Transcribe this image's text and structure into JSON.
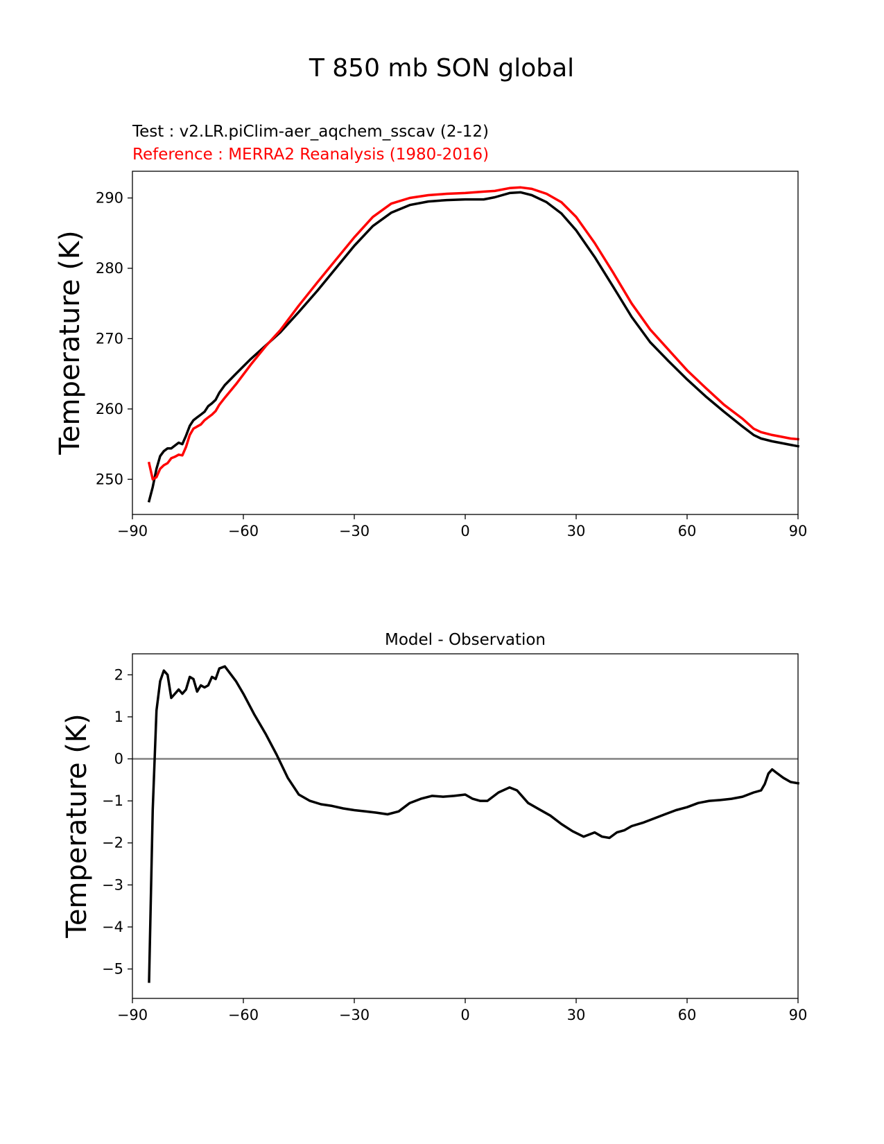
{
  "figure": {
    "suptitle": "T 850 mb SON global"
  },
  "chart_data": [
    {
      "type": "line",
      "test_label": "Test : v2.LR.piClim-aer_aqchem_sscav (2-12)",
      "reference_label": "Reference : MERRA2 Reanalysis (1980-2016)",
      "title": "",
      "xlabel": "",
      "ylabel": "Temperature (K)",
      "xlim": [
        -90,
        90
      ],
      "ylim": [
        245,
        293.8
      ],
      "xticks": [
        -90,
        -60,
        -30,
        0,
        30,
        60,
        90
      ],
      "xtick_labels": [
        "−90",
        "−60",
        "−30",
        "0",
        "30",
        "60",
        "90"
      ],
      "yticks": [
        250,
        260,
        270,
        280,
        290
      ],
      "ytick_labels": [
        "250",
        "260",
        "270",
        "280",
        "290"
      ],
      "series": [
        {
          "name": "Test",
          "color": "#000000",
          "x": [
            -85.5,
            -84.5,
            -83.5,
            -82.5,
            -81.5,
            -80.5,
            -79.5,
            -78.5,
            -77.5,
            -76.5,
            -75.5,
            -74.5,
            -73.5,
            -72.5,
            -71.5,
            -70.5,
            -69.5,
            -68.5,
            -67.5,
            -66.5,
            -65,
            -62,
            -58,
            -54,
            -50,
            -45,
            -40,
            -35,
            -30,
            -25,
            -20,
            -15,
            -10,
            -5,
            0,
            5,
            8,
            12,
            15,
            18,
            22,
            26,
            30,
            35,
            40,
            45,
            50,
            55,
            60,
            65,
            70,
            75,
            78,
            80,
            83,
            85,
            88,
            90
          ],
          "y": [
            246.9,
            248.9,
            251.5,
            253.3,
            254.0,
            254.4,
            254.4,
            254.8,
            255.2,
            255.0,
            256.2,
            257.6,
            258.4,
            258.8,
            259.2,
            259.6,
            260.4,
            260.8,
            261.3,
            262.3,
            263.4,
            265.0,
            267.1,
            269.0,
            270.9,
            273.8,
            276.8,
            280.0,
            283.2,
            286.0,
            287.9,
            289.0,
            289.5,
            289.7,
            289.8,
            289.8,
            290.1,
            290.7,
            290.8,
            290.4,
            289.4,
            287.8,
            285.4,
            281.6,
            277.4,
            273.1,
            269.5,
            266.8,
            264.2,
            261.8,
            259.6,
            257.5,
            256.3,
            255.8,
            255.4,
            255.2,
            254.9,
            254.7
          ]
        },
        {
          "name": "Reference",
          "color": "#ff0000",
          "x": [
            -85.5,
            -84.5,
            -83.5,
            -82.5,
            -81.5,
            -80.5,
            -79.5,
            -78.5,
            -77.5,
            -76.5,
            -75.5,
            -74.5,
            -73.5,
            -72.5,
            -71.5,
            -70.5,
            -69.5,
            -68.5,
            -67.5,
            -66.5,
            -65,
            -62,
            -58,
            -54,
            -50,
            -45,
            -40,
            -35,
            -30,
            -25,
            -20,
            -15,
            -10,
            -5,
            0,
            5,
            8,
            12,
            15,
            18,
            22,
            26,
            30,
            35,
            40,
            45,
            50,
            55,
            60,
            65,
            70,
            75,
            78,
            80,
            83,
            85,
            88,
            90
          ],
          "y": [
            252.3,
            250.0,
            250.3,
            251.5,
            252.0,
            252.3,
            253.0,
            253.2,
            253.5,
            253.4,
            254.6,
            256.3,
            257.2,
            257.5,
            257.8,
            258.4,
            258.8,
            259.2,
            259.7,
            260.6,
            261.6,
            263.5,
            266.3,
            268.9,
            271.2,
            274.7,
            278.0,
            281.2,
            284.4,
            287.3,
            289.2,
            290.0,
            290.4,
            290.6,
            290.7,
            290.9,
            291.0,
            291.4,
            291.5,
            291.3,
            290.6,
            289.4,
            287.3,
            283.6,
            279.4,
            275.0,
            271.3,
            268.4,
            265.5,
            263.0,
            260.6,
            258.6,
            257.2,
            256.7,
            256.3,
            256.1,
            255.8,
            255.7
          ]
        }
      ]
    },
    {
      "type": "line",
      "title": "Model - Observation",
      "xlabel": "",
      "ylabel": "Temperature (K)",
      "xlim": [
        -90,
        90
      ],
      "ylim": [
        -5.7,
        2.5
      ],
      "xticks": [
        -90,
        -60,
        -30,
        0,
        30,
        60,
        90
      ],
      "xtick_labels": [
        "−90",
        "−60",
        "−30",
        "0",
        "30",
        "60",
        "90"
      ],
      "yticks": [
        -5,
        -4,
        -3,
        -2,
        -1,
        0,
        1,
        2
      ],
      "ytick_labels": [
        "−5",
        "−4",
        "−3",
        "−2",
        "−1",
        "0",
        "1",
        "2"
      ],
      "zero_line_color": "#808080",
      "series": [
        {
          "name": "Test - Reference",
          "color": "#000000",
          "x": [
            -85.5,
            -84.5,
            -83.5,
            -82.5,
            -81.5,
            -80.5,
            -79.5,
            -78.5,
            -77.5,
            -76.5,
            -75.5,
            -74.5,
            -73.5,
            -72.5,
            -71.5,
            -70.5,
            -69.5,
            -68.5,
            -67.5,
            -66.5,
            -65,
            -62,
            -60,
            -57,
            -54,
            -51,
            -48,
            -45,
            -42,
            -39,
            -36,
            -33,
            -30,
            -27,
            -24,
            -21,
            -18,
            -15,
            -12,
            -9,
            -6,
            -3,
            0,
            2,
            4,
            6,
            9,
            12,
            14,
            17,
            20,
            23,
            26,
            29,
            32,
            35,
            37,
            39,
            41,
            43,
            45,
            48,
            51,
            54,
            57,
            60,
            63,
            66,
            69,
            72,
            75,
            78,
            80,
            81,
            82,
            83,
            84,
            86,
            88,
            90
          ],
          "y": [
            -5.3,
            -1.2,
            1.15,
            1.85,
            2.1,
            2.0,
            1.45,
            1.55,
            1.65,
            1.55,
            1.65,
            1.95,
            1.9,
            1.6,
            1.75,
            1.7,
            1.75,
            1.95,
            1.9,
            2.15,
            2.2,
            1.85,
            1.55,
            1.05,
            0.6,
            0.1,
            -0.45,
            -0.85,
            -1.0,
            -1.08,
            -1.12,
            -1.18,
            -1.22,
            -1.25,
            -1.28,
            -1.32,
            -1.25,
            -1.05,
            -0.95,
            -0.88,
            -0.9,
            -0.88,
            -0.85,
            -0.95,
            -1.0,
            -1.0,
            -0.8,
            -0.68,
            -0.75,
            -1.05,
            -1.2,
            -1.35,
            -1.55,
            -1.72,
            -1.85,
            -1.75,
            -1.85,
            -1.88,
            -1.75,
            -1.7,
            -1.6,
            -1.52,
            -1.42,
            -1.32,
            -1.22,
            -1.15,
            -1.05,
            -1.0,
            -0.98,
            -0.95,
            -0.9,
            -0.8,
            -0.75,
            -0.6,
            -0.35,
            -0.25,
            -0.32,
            -0.45,
            -0.55,
            -0.58
          ]
        }
      ]
    }
  ]
}
